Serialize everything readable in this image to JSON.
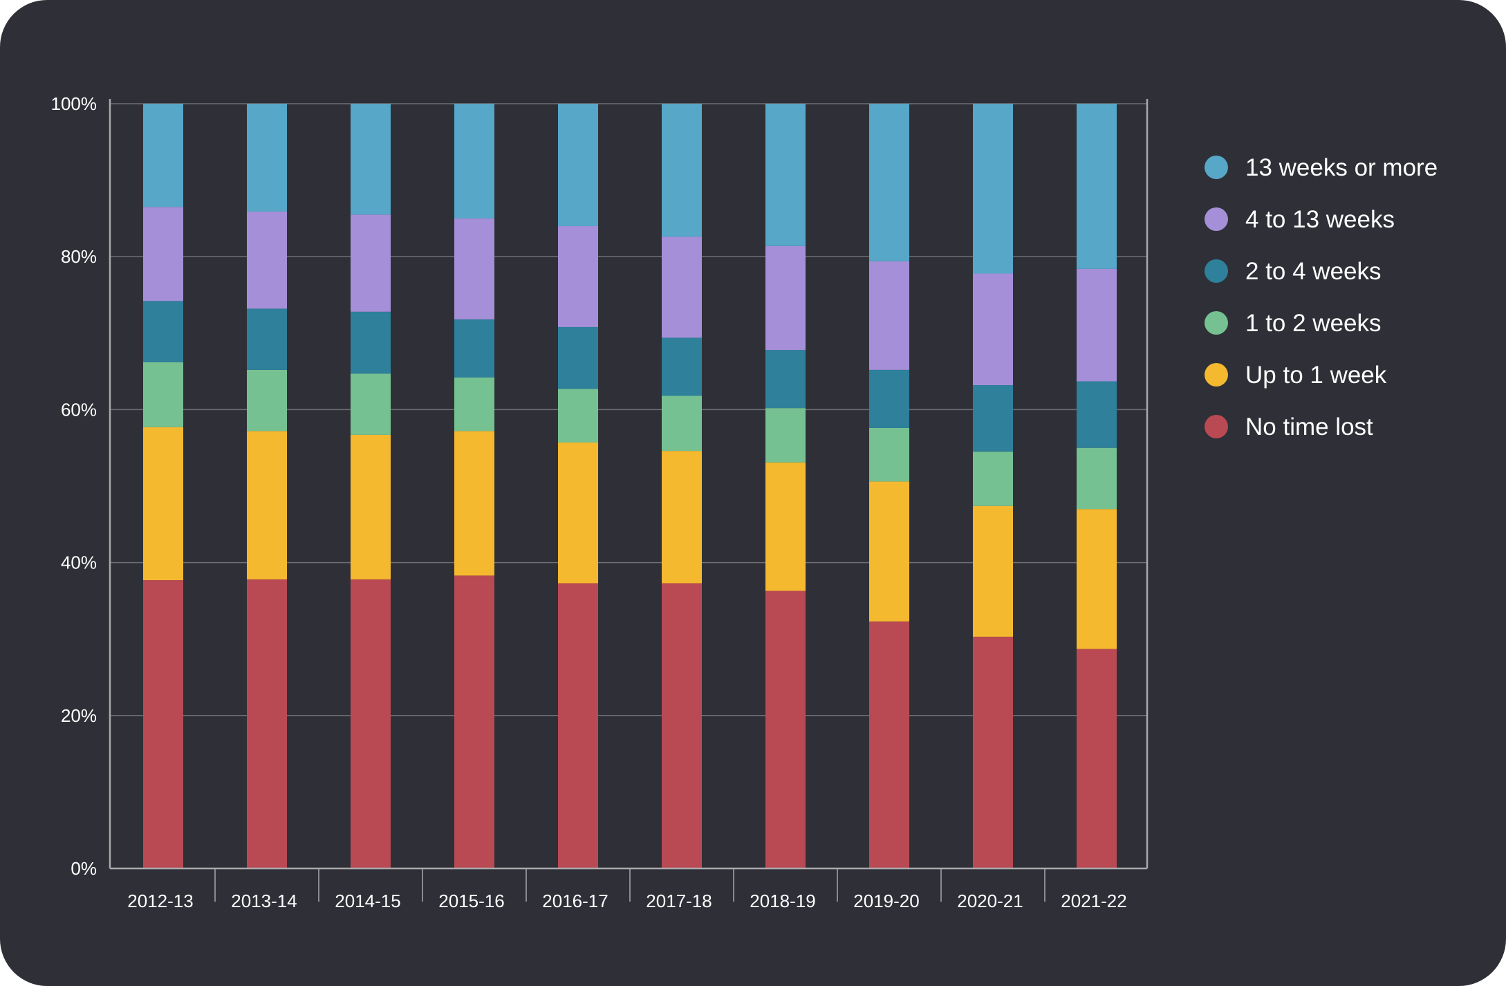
{
  "chart_data": {
    "type": "bar",
    "stacked": true,
    "title": "",
    "xlabel": "",
    "ylabel": "",
    "ylim": [
      0,
      100
    ],
    "yticks": [
      "0%",
      "20%",
      "40%",
      "60%",
      "80%",
      "100%"
    ],
    "categories": [
      "2012-13",
      "2013-14",
      "2014-15",
      "2015-16",
      "2016-17",
      "2017-18",
      "2018-19",
      "2019-20",
      "2020-21",
      "2021-22"
    ],
    "series": [
      {
        "name": "No time lost",
        "color": "#b94a53",
        "values": [
          37.7,
          37.8,
          37.8,
          38.3,
          37.3,
          37.3,
          36.3,
          32.3,
          30.3,
          28.7
        ]
      },
      {
        "name": "Up to 1 week",
        "color": "#f4b92f",
        "values": [
          20.0,
          19.4,
          18.9,
          18.9,
          18.4,
          17.3,
          16.8,
          18.3,
          17.1,
          18.3
        ]
      },
      {
        "name": "1 to 2 weeks",
        "color": "#76c191",
        "values": [
          8.5,
          8.0,
          8.0,
          7.0,
          7.0,
          7.2,
          7.1,
          7.0,
          7.1,
          8.0
        ]
      },
      {
        "name": "2 to 4 weeks",
        "color": "#2e809b",
        "values": [
          8.0,
          8.0,
          8.1,
          7.6,
          8.1,
          7.6,
          7.6,
          7.6,
          8.7,
          8.7
        ]
      },
      {
        "name": "4 to 13 weeks",
        "color": "#a58fd8",
        "values": [
          12.3,
          12.7,
          12.7,
          13.2,
          13.2,
          13.2,
          13.6,
          14.2,
          14.6,
          14.7
        ]
      },
      {
        "name": "13 weeks or more",
        "color": "#56a7c8",
        "values": [
          13.5,
          14.1,
          14.5,
          15.0,
          16.0,
          17.4,
          18.6,
          20.6,
          22.2,
          21.6
        ]
      }
    ],
    "legend_position": "right",
    "grid": true
  },
  "legend_order": [
    5,
    4,
    3,
    2,
    1,
    0
  ]
}
